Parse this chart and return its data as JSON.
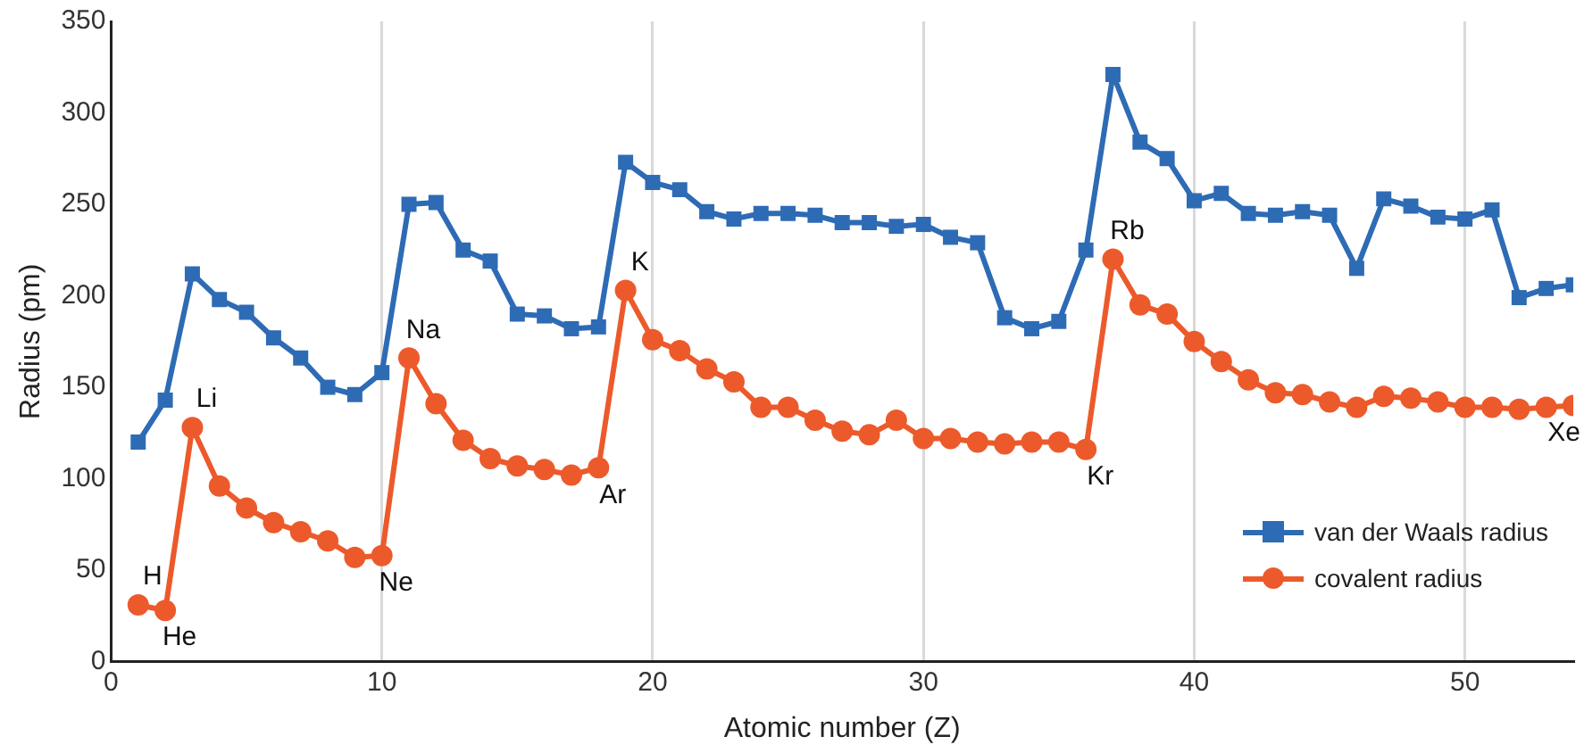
{
  "chart_data": {
    "type": "line",
    "xlabel": "Atomic number (Z)",
    "ylabel": "Radius (pm)",
    "x": [
      1,
      2,
      3,
      4,
      5,
      6,
      7,
      8,
      9,
      10,
      11,
      12,
      13,
      14,
      15,
      16,
      17,
      18,
      19,
      20,
      21,
      22,
      23,
      24,
      25,
      26,
      27,
      28,
      29,
      30,
      31,
      32,
      33,
      34,
      35,
      36,
      37,
      38,
      39,
      40,
      41,
      42,
      43,
      44,
      45,
      46,
      47,
      48,
      49,
      50,
      51,
      52,
      53,
      54
    ],
    "series": [
      {
        "name": "van der Waals radius",
        "color": "#2e6bb5",
        "marker": "square",
        "values": [
          120,
          143,
          212,
          198,
          191,
          177,
          166,
          150,
          146,
          158,
          250,
          251,
          225,
          219,
          190,
          189,
          182,
          183,
          273,
          262,
          258,
          246,
          242,
          245,
          245,
          244,
          240,
          240,
          238,
          239,
          232,
          229,
          188,
          182,
          186,
          225,
          321,
          284,
          275,
          252,
          256,
          245,
          244,
          246,
          244,
          215,
          253,
          249,
          243,
          242,
          247,
          199,
          204,
          206
        ]
      },
      {
        "name": "covalent radius",
        "color": "#ec5a2b",
        "marker": "circle",
        "values": [
          31,
          28,
          128,
          96,
          84,
          76,
          71,
          66,
          57,
          58,
          166,
          141,
          121,
          111,
          107,
          105,
          102,
          106,
          203,
          176,
          170,
          160,
          153,
          139,
          139,
          132,
          126,
          124,
          132,
          122,
          122,
          120,
          119,
          120,
          120,
          116,
          220,
          195,
          190,
          175,
          164,
          154,
          147,
          146,
          142,
          139,
          145,
          144,
          142,
          139,
          139,
          138,
          139,
          140
        ]
      }
    ],
    "annotations": [
      {
        "text": "H",
        "x": 1,
        "y": 31
      },
      {
        "text": "He",
        "x": 2,
        "y": 28
      },
      {
        "text": "Li",
        "x": 3,
        "y": 128
      },
      {
        "text": "Ne",
        "x": 10,
        "y": 58
      },
      {
        "text": "Na",
        "x": 11,
        "y": 166
      },
      {
        "text": "Ar",
        "x": 18,
        "y": 106
      },
      {
        "text": "K",
        "x": 19,
        "y": 203
      },
      {
        "text": "Kr",
        "x": 36,
        "y": 116
      },
      {
        "text": "Rb",
        "x": 37,
        "y": 220
      },
      {
        "text": "Xe",
        "x": 54,
        "y": 140
      }
    ],
    "xlim": [
      0,
      54
    ],
    "xticks": [
      0,
      10,
      20,
      30,
      40,
      50
    ],
    "ylim": [
      0,
      350
    ],
    "yticks": [
      0,
      50,
      100,
      150,
      200,
      250,
      300,
      350
    ],
    "grid": "x",
    "legend": "right",
    "line_style": "solid"
  }
}
